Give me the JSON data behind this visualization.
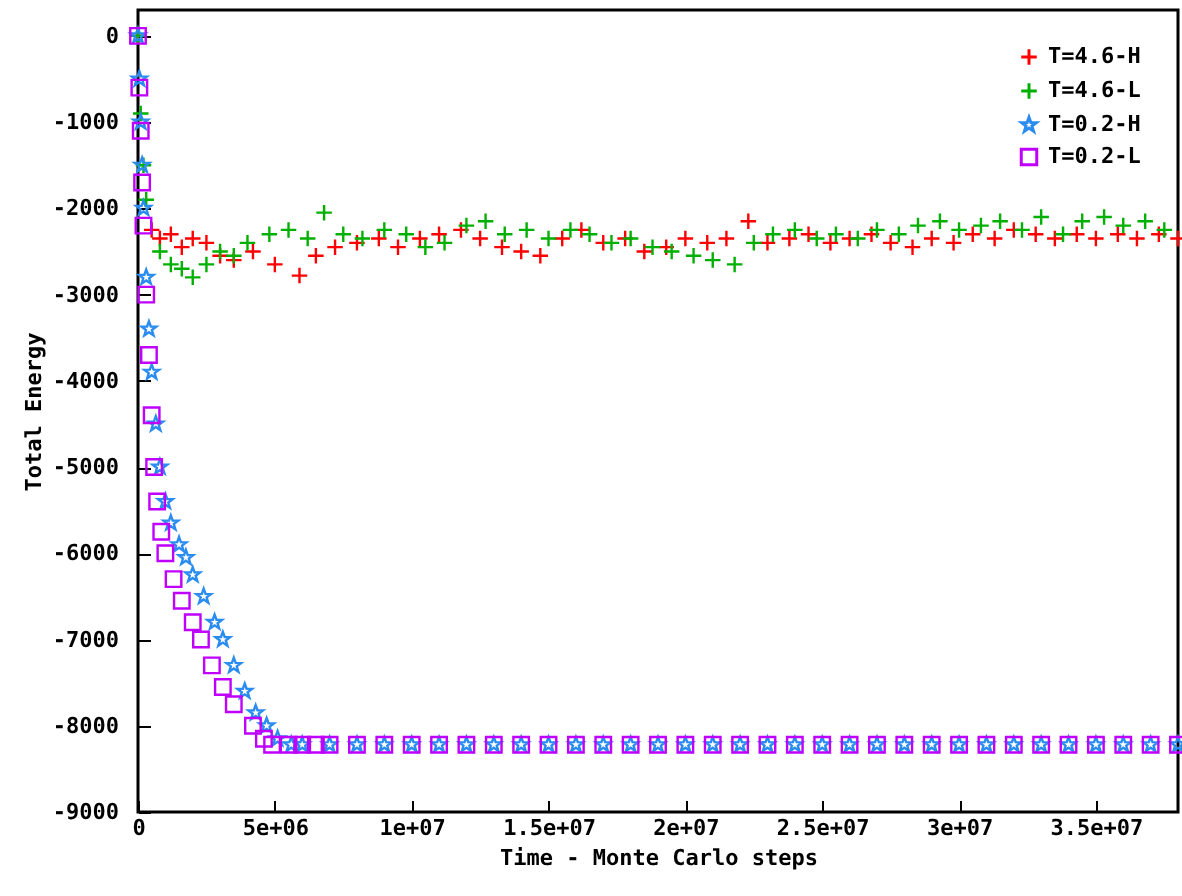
{
  "chart_data": {
    "type": "scatter",
    "xlabel": "Time - Monte Carlo steps",
    "ylabel": "Total Energy",
    "xlim": [
      0,
      38000000
    ],
    "ylim": [
      -9000,
      300
    ],
    "xticks": [
      0,
      {
        "value": 5000000,
        "label": "5e+06"
      },
      {
        "value": 10000000,
        "label": "1e+07"
      },
      {
        "value": 15000000,
        "label": "1.5e+07"
      },
      {
        "value": 20000000,
        "label": "2e+07"
      },
      {
        "value": 25000000,
        "label": "2.5e+07"
      },
      {
        "value": 30000000,
        "label": "3e+07"
      },
      {
        "value": 35000000,
        "label": "3.5e+07"
      }
    ],
    "yticks": [
      0,
      -1000,
      -2000,
      -3000,
      -4000,
      -5000,
      -6000,
      -7000,
      -8000,
      -9000
    ],
    "grid": false,
    "legend": "top right",
    "series": [
      {
        "name": "T=4.6-H",
        "color": "#ff0000",
        "marker": "cross",
        "x": [
          0,
          500000,
          800000,
          1200000,
          1600000,
          2000000,
          2500000,
          3000000,
          3500000,
          4200000,
          5000000,
          5900000,
          6500000,
          7200000,
          8000000,
          8800000,
          9500000,
          10300000,
          11000000,
          11800000,
          12500000,
          13300000,
          14000000,
          14700000,
          15500000,
          16200000,
          17000000,
          17800000,
          18500000,
          19300000,
          20000000,
          20800000,
          21500000,
          22300000,
          23000000,
          23800000,
          24500000,
          25300000,
          26000000,
          26800000,
          27500000,
          28300000,
          29000000,
          29800000,
          30500000,
          31300000,
          32000000,
          32800000,
          33500000,
          34300000,
          35000000,
          35800000,
          36500000,
          37300000,
          38000000
        ],
        "values": [
          0,
          -2250,
          -2350,
          -2300,
          -2450,
          -2350,
          -2400,
          -2550,
          -2600,
          -2500,
          -2650,
          -2780,
          -2550,
          -2450,
          -2400,
          -2350,
          -2450,
          -2350,
          -2300,
          -2250,
          -2350,
          -2450,
          -2500,
          -2550,
          -2350,
          -2250,
          -2400,
          -2350,
          -2500,
          -2450,
          -2350,
          -2400,
          -2350,
          -2150,
          -2400,
          -2350,
          -2300,
          -2400,
          -2350,
          -2300,
          -2400,
          -2450,
          -2350,
          -2400,
          -2300,
          -2350,
          -2250,
          -2300,
          -2350,
          -2300,
          -2350,
          -2300,
          -2350,
          -2300,
          -2350
        ]
      },
      {
        "name": "T=4.6-L",
        "color": "#00b000",
        "marker": "cross",
        "x": [
          0,
          100000,
          200000,
          300000,
          800000,
          1200000,
          1600000,
          2000000,
          2500000,
          3000000,
          3500000,
          4000000,
          4800000,
          5500000,
          6200000,
          6800000,
          7500000,
          8200000,
          9000000,
          9800000,
          10500000,
          11200000,
          12000000,
          12700000,
          13400000,
          14200000,
          15000000,
          15800000,
          16500000,
          17300000,
          18000000,
          18800000,
          19500000,
          20300000,
          21000000,
          21800000,
          22500000,
          23200000,
          24000000,
          24800000,
          25500000,
          26300000,
          27000000,
          27800000,
          28500000,
          29300000,
          30000000,
          30800000,
          31500000,
          32300000,
          33000000,
          33800000,
          34500000,
          35300000,
          36000000,
          36800000,
          37500000
        ],
        "values": [
          0,
          -900,
          -1500,
          -1900,
          -2500,
          -2650,
          -2700,
          -2800,
          -2650,
          -2500,
          -2550,
          -2400,
          -2300,
          -2250,
          -2350,
          -2050,
          -2300,
          -2350,
          -2250,
          -2300,
          -2450,
          -2400,
          -2200,
          -2150,
          -2300,
          -2250,
          -2350,
          -2250,
          -2300,
          -2400,
          -2350,
          -2450,
          -2500,
          -2550,
          -2600,
          -2650,
          -2400,
          -2300,
          -2250,
          -2350,
          -2300,
          -2350,
          -2250,
          -2300,
          -2200,
          -2150,
          -2250,
          -2200,
          -2150,
          -2250,
          -2100,
          -2300,
          -2150,
          -2100,
          -2200,
          -2150,
          -2250
        ]
      },
      {
        "name": "T=0.2-H",
        "color": "#2a8cf0",
        "marker": "star",
        "x": [
          0,
          50000,
          100000,
          150000,
          200000,
          300000,
          400000,
          500000,
          650000,
          800000,
          1000000,
          1200000,
          1500000,
          1750000,
          2000000,
          2400000,
          2800000,
          3100000,
          3500000,
          3900000,
          4300000,
          4700000,
          5100000,
          5600000,
          6000000,
          7000000,
          8000000,
          9000000,
          10000000,
          11000000,
          12000000,
          13000000,
          14000000,
          15000000,
          16000000,
          17000000,
          18000000,
          19000000,
          20000000,
          21000000,
          22000000,
          23000000,
          24000000,
          25000000,
          26000000,
          27000000,
          28000000,
          29000000,
          30000000,
          31000000,
          32000000,
          33000000,
          34000000,
          35000000,
          36000000,
          37000000,
          38000000
        ],
        "values": [
          0,
          -500,
          -1000,
          -1500,
          -2000,
          -2800,
          -3400,
          -3900,
          -4500,
          -5000,
          -5400,
          -5650,
          -5900,
          -6050,
          -6250,
          -6500,
          -6800,
          -7000,
          -7300,
          -7600,
          -7850,
          -8000,
          -8150,
          -8220,
          -8220,
          -8220,
          -8220,
          -8220,
          -8220,
          -8220,
          -8220,
          -8220,
          -8220,
          -8220,
          -8220,
          -8220,
          -8220,
          -8220,
          -8220,
          -8220,
          -8220,
          -8220,
          -8220,
          -8220,
          -8220,
          -8220,
          -8220,
          -8220,
          -8220,
          -8220,
          -8220,
          -8220,
          -8220,
          -8220,
          -8220,
          -8220,
          -8220
        ]
      },
      {
        "name": "T=0.2-L",
        "color": "#c000ff",
        "marker": "square",
        "x": [
          0,
          50000,
          100000,
          150000,
          200000,
          300000,
          400000,
          500000,
          590000,
          700000,
          850000,
          1000000,
          1300000,
          1600000,
          2000000,
          2300000,
          2700000,
          3100000,
          3500000,
          4200000,
          4600000,
          4900000,
          5500000,
          6000000,
          6500000,
          7000000,
          8000000,
          9000000,
          10000000,
          11000000,
          12000000,
          13000000,
          14000000,
          15000000,
          16000000,
          17000000,
          18000000,
          19000000,
          20000000,
          21000000,
          22000000,
          23000000,
          24000000,
          25000000,
          26000000,
          27000000,
          28000000,
          29000000,
          30000000,
          31000000,
          32000000,
          33000000,
          34000000,
          35000000,
          36000000,
          37000000,
          38000000
        ],
        "values": [
          0,
          -600,
          -1100,
          -1700,
          -2200,
          -3000,
          -3700,
          -4400,
          -5000,
          -5400,
          -5750,
          -6000,
          -6300,
          -6550,
          -6800,
          -7000,
          -7300,
          -7550,
          -7750,
          -8000,
          -8150,
          -8220,
          -8220,
          -8220,
          -8220,
          -8220,
          -8220,
          -8220,
          -8220,
          -8220,
          -8220,
          -8220,
          -8220,
          -8220,
          -8220,
          -8220,
          -8220,
          -8220,
          -8220,
          -8220,
          -8220,
          -8220,
          -8220,
          -8220,
          -8220,
          -8220,
          -8220,
          -8220,
          -8220,
          -8220,
          -8220,
          -8220,
          -8220,
          -8220,
          -8220,
          -8220,
          -8220
        ]
      }
    ]
  }
}
